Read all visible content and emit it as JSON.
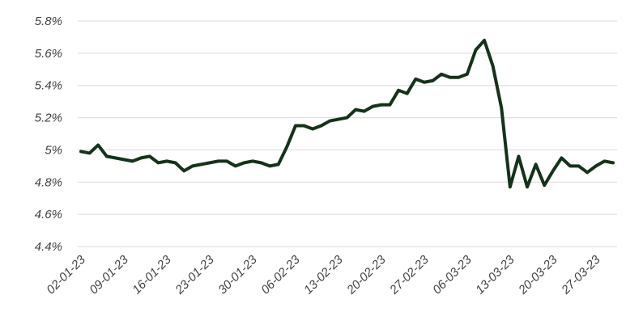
{
  "chart_data": {
    "type": "line",
    "categories": [
      "02-01-23",
      null,
      null,
      null,
      null,
      "09-01-23",
      null,
      null,
      null,
      null,
      "16-01-23",
      null,
      null,
      null,
      null,
      "23-01-23",
      null,
      null,
      null,
      null,
      "30-01-23",
      null,
      null,
      null,
      null,
      "06-02-23",
      null,
      null,
      null,
      null,
      "13-02-23",
      null,
      null,
      null,
      null,
      "20-02-23",
      null,
      null,
      null,
      null,
      "27-02-23",
      null,
      null,
      null,
      null,
      "06-03-23",
      null,
      null,
      null,
      null,
      "13-03-23",
      null,
      null,
      null,
      null,
      "20-03-23",
      null,
      null,
      null,
      null,
      "27-03-23",
      null,
      null
    ],
    "series": [
      {
        "color": "#15321a",
        "values": [
          4.99,
          4.98,
          5.03,
          4.96,
          4.95,
          4.94,
          4.93,
          4.95,
          4.96,
          4.92,
          4.93,
          4.92,
          4.87,
          4.9,
          4.91,
          4.92,
          4.93,
          4.93,
          4.9,
          4.92,
          4.93,
          4.92,
          4.9,
          4.91,
          5.02,
          5.15,
          5.15,
          5.13,
          5.15,
          5.18,
          5.19,
          5.2,
          5.25,
          5.24,
          5.27,
          5.28,
          5.28,
          5.37,
          5.35,
          5.44,
          5.42,
          5.43,
          5.47,
          5.45,
          5.45,
          5.47,
          5.62,
          5.68,
          5.52,
          5.26,
          4.77,
          4.96,
          4.77,
          4.91,
          4.78,
          4.87,
          4.95,
          4.9,
          4.9,
          4.86,
          4.9,
          4.93,
          4.92
        ]
      }
    ],
    "ylim": [
      4.4,
      5.8
    ],
    "yticks": [
      {
        "value": 4.4,
        "label": "4.4%"
      },
      {
        "value": 4.6,
        "label": "4.6%"
      },
      {
        "value": 4.8,
        "label": "4.8%"
      },
      {
        "value": 5,
        "label": "5%"
      },
      {
        "value": 5.2,
        "label": "5.2%"
      },
      {
        "value": 5.4,
        "label": "5.4%"
      },
      {
        "value": 5.6,
        "label": "5.6%"
      },
      {
        "value": 5.8,
        "label": "5.8%"
      }
    ],
    "grid": true
  }
}
